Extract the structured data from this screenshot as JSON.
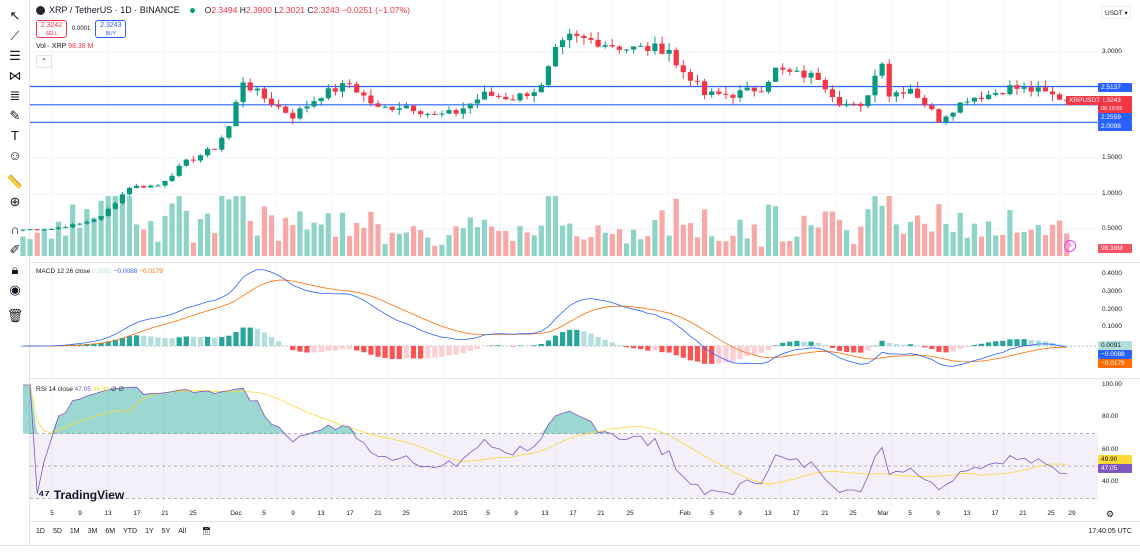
{
  "header": {
    "symbol": "XRP / TetherUS · 1D · BINANCE",
    "open_label": "O",
    "open": "2.3494",
    "high_label": "H",
    "high": "2.3900",
    "low_label": "L",
    "low": "2.3021",
    "close_label": "C",
    "close": "2.3243",
    "change": "−0.0251 (−1.07%)"
  },
  "trade": {
    "sell_price": "2.3242",
    "sell_label": "SELL",
    "spread": "0.0001",
    "buy_price": "2.3243",
    "buy_label": "BUY"
  },
  "volume_label": {
    "name": "Vol · XRP",
    "value": "98.38 M"
  },
  "macd_label": {
    "name": "MACD 12 26 close",
    "hist": "0.0091",
    "macd": "−0.0088",
    "signal": "−0.0179"
  },
  "rsi_label": {
    "name": "RSI 14 close",
    "rsi": "47.05",
    "ma": "49.90",
    "extra": "∅ ∅"
  },
  "currency": "USDT",
  "price_axis": {
    "ticks": [
      "3.0000",
      "1.5000",
      "1.0000",
      "0.5000"
    ],
    "levels": [
      "2.5137",
      "2.2559",
      "2.0098"
    ],
    "last_price": "2.3243",
    "countdown": "06:19:55",
    "symbol_tag": "XRPUSDT",
    "volume_tag": "98.38M"
  },
  "macd_axis": {
    "ticks": [
      "0.4000",
      "0.3000",
      "0.2000",
      "0.1000"
    ],
    "hist_tag": "0.0091",
    "macd_tag": "−0.0088",
    "signal_tag": "−0.0179"
  },
  "rsi_axis": {
    "ticks": [
      "100.00",
      "80.00",
      "60.00",
      "40.00"
    ],
    "ma_tag": "49.90",
    "rsi_tag": "47.05"
  },
  "time_axis": [
    "5",
    "9",
    "13",
    "17",
    "21",
    "25",
    "Dec",
    "5",
    "9",
    "13",
    "17",
    "21",
    "25",
    "2025",
    "5",
    "9",
    "13",
    "17",
    "21",
    "25",
    "Feb",
    "5",
    "9",
    "13",
    "17",
    "21",
    "25",
    "Mar",
    "5",
    "9",
    "13",
    "17",
    "21",
    "25",
    "29"
  ],
  "periods": [
    "1D",
    "5D",
    "1M",
    "3M",
    "6M",
    "YTD",
    "1Y",
    "5Y",
    "All"
  ],
  "clock": "17:40:05 UTC",
  "logo": "TradingView",
  "colors": {
    "up": "#089981",
    "down": "#f23645",
    "level": "#2962ff",
    "macd": "#2962ff",
    "signal": "#ff6d00",
    "rsi": "#7e57c2",
    "rsi_ma": "#fdd835"
  },
  "chart_data": {
    "type": "candlestick",
    "x_range": [
      "2024-11-01",
      "2025-03-28"
    ],
    "price_ylim": [
      0.4,
      3.3
    ],
    "horizontal_levels": [
      2.5137,
      2.2559,
      2.0098
    ],
    "price_path": [
      [
        "2024-11-01",
        0.5
      ],
      [
        "2024-11-05",
        0.51
      ],
      [
        "2024-11-09",
        0.58
      ],
      [
        "2024-11-12",
        0.68
      ],
      [
        "2024-11-16",
        1.1
      ],
      [
        "2024-11-20",
        1.12
      ],
      [
        "2024-11-24",
        1.45
      ],
      [
        "2024-11-28",
        1.65
      ],
      [
        "2024-11-30",
        1.95
      ],
      [
        "2024-12-02",
        2.6
      ],
      [
        "2024-12-03",
        2.5
      ],
      [
        "2024-12-05",
        2.35
      ],
      [
        "2024-12-09",
        2.1
      ],
      [
        "2024-12-13",
        2.4
      ],
      [
        "2024-12-17",
        2.55
      ],
      [
        "2024-12-21",
        2.2
      ],
      [
        "2024-12-25",
        2.25
      ],
      [
        "2024-12-29",
        2.1
      ],
      [
        "2025-01-01",
        2.15
      ],
      [
        "2025-01-05",
        2.4
      ],
      [
        "2025-01-09",
        2.35
      ],
      [
        "2025-01-13",
        2.5
      ],
      [
        "2025-01-15",
        3.0
      ],
      [
        "2025-01-17",
        3.2
      ],
      [
        "2025-01-21",
        3.15
      ],
      [
        "2025-01-25",
        3.05
      ],
      [
        "2025-01-31",
        3.05
      ],
      [
        "2025-02-01",
        2.8
      ],
      [
        "2025-02-03",
        2.65
      ],
      [
        "2025-02-05",
        2.4
      ],
      [
        "2025-02-09",
        2.4
      ],
      [
        "2025-02-13",
        2.5
      ],
      [
        "2025-02-15",
        2.75
      ],
      [
        "2025-02-17",
        2.7
      ],
      [
        "2025-02-21",
        2.65
      ],
      [
        "2025-02-24",
        2.3
      ],
      [
        "2025-02-27",
        2.2
      ],
      [
        "2025-03-02",
        2.9
      ],
      [
        "2025-03-03",
        2.4
      ],
      [
        "2025-03-06",
        2.5
      ],
      [
        "2025-03-10",
        2.05
      ],
      [
        "2025-03-14",
        2.35
      ],
      [
        "2025-03-17",
        2.4
      ],
      [
        "2025-03-20",
        2.5
      ],
      [
        "2025-03-24",
        2.45
      ],
      [
        "2025-03-28",
        2.3243
      ]
    ],
    "macd_ylim": [
      -0.07,
      0.45
    ],
    "rsi_ylim": [
      25,
      100
    ],
    "rsi_bands": [
      30,
      70
    ]
  }
}
